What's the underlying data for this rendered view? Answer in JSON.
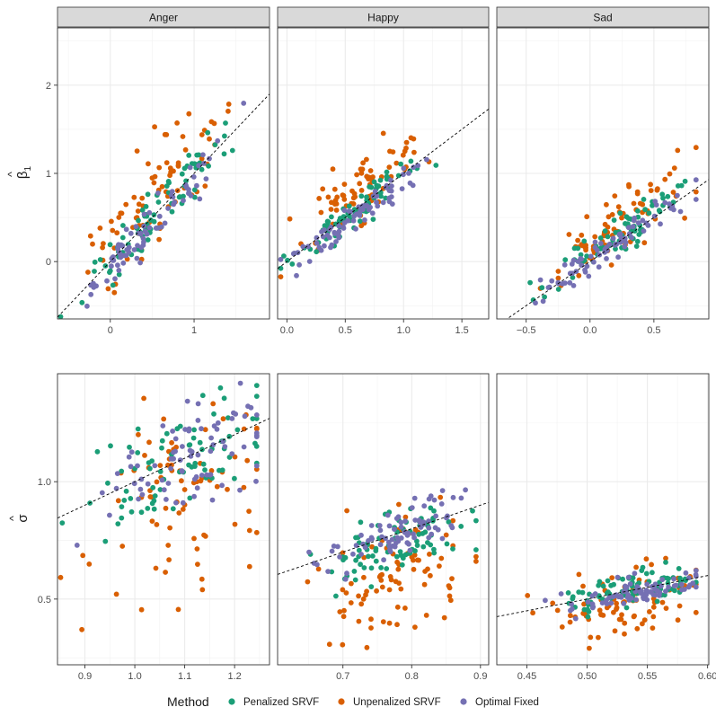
{
  "chart_data": {
    "type": "scatter",
    "title": "",
    "legend": {
      "title": "Method",
      "placement": "bottom",
      "entries": [
        {
          "name": "Penalized SRVF",
          "color": "#1b9e77"
        },
        {
          "name": "Unpenalized SRVF",
          "color": "#d95f02"
        },
        {
          "name": "Optimal Fixed",
          "color": "#7570b3"
        }
      ]
    },
    "row_labels": {
      "beta_base": "β",
      "beta_sub": "1",
      "hat": "^",
      "sigma": "σ"
    },
    "rows": [
      {
        "id": "beta1",
        "ylim": [
          -0.65,
          2.65
        ],
        "yticks": [
          0,
          1,
          2
        ],
        "ytick_labels": [
          "0",
          "1",
          "2"
        ]
      },
      {
        "id": "sigma",
        "ylim": [
          0.22,
          1.46
        ],
        "yticks": [
          0.5,
          1.0
        ],
        "ytick_labels": [
          "0.5",
          "1.0"
        ]
      }
    ],
    "columns": [
      {
        "facet": "Anger",
        "panels": [
          {
            "xlim": [
              -0.63,
              1.9
            ],
            "xticks": [
              0,
              1
            ],
            "xtick_labels": [
              "0",
              "1"
            ],
            "ref_line": {
              "slope": 1.0,
              "intercept": 0.0
            },
            "gen": {
              "seed": 11,
              "n": 80,
              "xc": 0.55,
              "xs": 0.42,
              "offsets": [
                0.03,
                0.28,
                -0.06
              ],
              "spread": [
                0.13,
                0.3,
                0.12
              ]
            }
          },
          {
            "xlim": [
              0.845,
              1.27
            ],
            "xticks": [
              0.9,
              1.0,
              1.1,
              1.2
            ],
            "xtick_labels": [
              "0.9",
              "1.0",
              "1.1",
              "1.2"
            ],
            "ref_line": {
              "slope": 1.0,
              "intercept": 0.0
            },
            "gen": {
              "seed": 12,
              "n": 80,
              "xc": 1.1,
              "xs": 0.09,
              "offsets": [
                -0.02,
                -0.18,
                0.0
              ],
              "spread": [
                0.11,
                0.2,
                0.1
              ]
            }
          }
        ]
      },
      {
        "facet": "Happy",
        "panels": [
          {
            "xlim": [
              -0.08,
              1.73
            ],
            "xticks": [
              0.0,
              0.5,
              1.0,
              1.5
            ],
            "xtick_labels": [
              "0.0",
              "0.5",
              "1.0",
              "1.5"
            ],
            "ref_line": {
              "slope": 1.0,
              "intercept": 0.0
            },
            "gen": {
              "seed": 21,
              "n": 80,
              "xc": 0.6,
              "xs": 0.25,
              "offsets": [
                0.0,
                0.22,
                -0.07
              ],
              "spread": [
                0.1,
                0.18,
                0.09
              ]
            }
          },
          {
            "xlim": [
              0.605,
              0.912
            ],
            "xticks": [
              0.7,
              0.8,
              0.9
            ],
            "xtick_labels": [
              "0.7",
              "0.8",
              "0.9"
            ],
            "ref_line": {
              "slope": 1.0,
              "intercept": 0.0
            },
            "gen": {
              "seed": 22,
              "n": 85,
              "xc": 0.78,
              "xs": 0.055,
              "offsets": [
                -0.04,
                -0.17,
                0.0
              ],
              "spread": [
                0.07,
                0.12,
                0.05
              ]
            }
          }
        ]
      },
      {
        "facet": "Sad",
        "panels": [
          {
            "xlim": [
              -0.73,
              0.93
            ],
            "xticks": [
              -0.5,
              0.0,
              0.5
            ],
            "xtick_labels": [
              "−0.5",
              "0.0",
              "0.5"
            ],
            "ref_line": {
              "slope": 1.0,
              "intercept": 0.0
            },
            "gen": {
              "seed": 31,
              "n": 80,
              "xc": 0.2,
              "xs": 0.28,
              "offsets": [
                0.08,
                0.22,
                0.02
              ],
              "spread": [
                0.1,
                0.2,
                0.08
              ]
            }
          },
          {
            "xlim": [
              0.425,
              0.601
            ],
            "xticks": [
              0.45,
              0.5,
              0.55,
              0.6
            ],
            "xtick_labels": [
              "0.45",
              "0.50",
              "0.55",
              "0.60"
            ],
            "ref_line": {
              "slope": 1.0,
              "intercept": 0.0
            },
            "gen": {
              "seed": 32,
              "n": 85,
              "xc": 0.535,
              "xs": 0.03,
              "offsets": [
                0.0,
                -0.06,
                -0.01
              ],
              "spread": [
                0.04,
                0.07,
                0.03
              ]
            }
          }
        ]
      }
    ]
  }
}
